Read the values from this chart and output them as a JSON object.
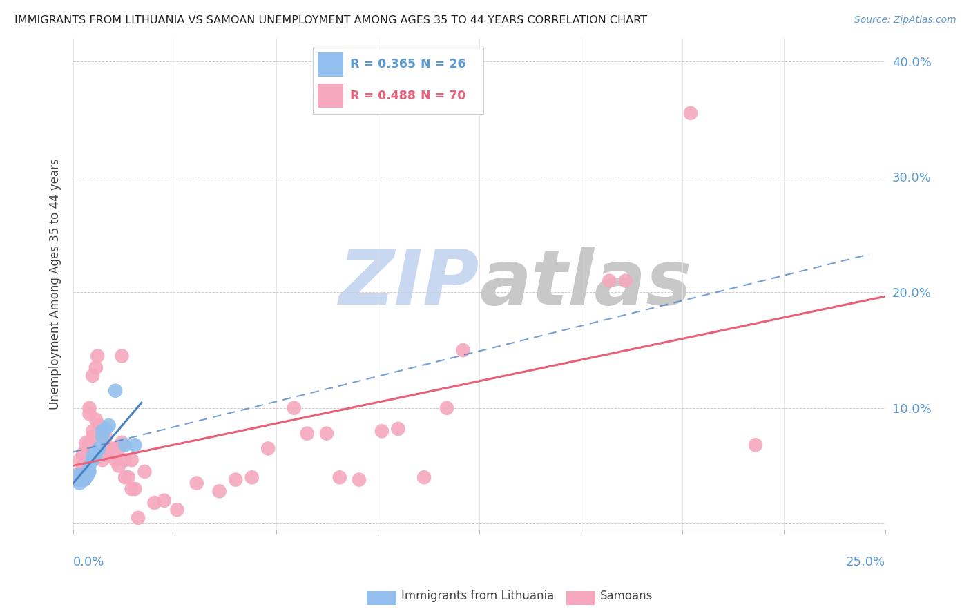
{
  "title": "IMMIGRANTS FROM LITHUANIA VS SAMOAN UNEMPLOYMENT AMONG AGES 35 TO 44 YEARS CORRELATION CHART",
  "source": "Source: ZipAtlas.com",
  "ylabel": "Unemployment Among Ages 35 to 44 years",
  "xlim": [
    0.0,
    0.25
  ],
  "ylim": [
    -0.005,
    0.42
  ],
  "yticks": [
    0.0,
    0.1,
    0.2,
    0.3,
    0.4
  ],
  "ytick_labels": [
    "",
    "10.0%",
    "20.0%",
    "30.0%",
    "40.0%"
  ],
  "legend_r1": "R = 0.365",
  "legend_n1": "N = 26",
  "legend_r2": "R = 0.488",
  "legend_n2": "N = 70",
  "lithuania_color": "#92bfed",
  "samoan_color": "#f5a8be",
  "lithuania_line_color": "#4a80c4",
  "samoan_line_color": "#e8607a",
  "watermark_zip_color": "#c8d8f0",
  "watermark_atlas_color": "#c8c8c8",
  "lithuania_points": [
    [
      0.0005,
      0.038
    ],
    [
      0.001,
      0.04
    ],
    [
      0.0015,
      0.042
    ],
    [
      0.002,
      0.035
    ],
    [
      0.002,
      0.04
    ],
    [
      0.0025,
      0.038
    ],
    [
      0.003,
      0.04
    ],
    [
      0.003,
      0.042
    ],
    [
      0.0035,
      0.038
    ],
    [
      0.004,
      0.04
    ],
    [
      0.004,
      0.043
    ],
    [
      0.0045,
      0.042
    ],
    [
      0.005,
      0.045
    ],
    [
      0.005,
      0.05
    ],
    [
      0.006,
      0.055
    ],
    [
      0.006,
      0.058
    ],
    [
      0.007,
      0.06
    ],
    [
      0.007,
      0.062
    ],
    [
      0.008,
      0.065
    ],
    [
      0.009,
      0.075
    ],
    [
      0.009,
      0.08
    ],
    [
      0.01,
      0.082
    ],
    [
      0.011,
      0.085
    ],
    [
      0.013,
      0.115
    ],
    [
      0.016,
      0.068
    ],
    [
      0.019,
      0.068
    ]
  ],
  "samoan_points": [
    [
      0.0005,
      0.038
    ],
    [
      0.001,
      0.038
    ],
    [
      0.001,
      0.042
    ],
    [
      0.0015,
      0.04
    ],
    [
      0.002,
      0.038
    ],
    [
      0.002,
      0.042
    ],
    [
      0.002,
      0.055
    ],
    [
      0.0025,
      0.045
    ],
    [
      0.003,
      0.04
    ],
    [
      0.003,
      0.048
    ],
    [
      0.003,
      0.06
    ],
    [
      0.0035,
      0.038
    ],
    [
      0.004,
      0.042
    ],
    [
      0.004,
      0.065
    ],
    [
      0.004,
      0.07
    ],
    [
      0.005,
      0.068
    ],
    [
      0.005,
      0.095
    ],
    [
      0.005,
      0.1
    ],
    [
      0.006,
      0.075
    ],
    [
      0.006,
      0.08
    ],
    [
      0.006,
      0.128
    ],
    [
      0.007,
      0.09
    ],
    [
      0.007,
      0.135
    ],
    [
      0.0075,
      0.145
    ],
    [
      0.008,
      0.06
    ],
    [
      0.008,
      0.085
    ],
    [
      0.009,
      0.08
    ],
    [
      0.009,
      0.055
    ],
    [
      0.01,
      0.065
    ],
    [
      0.01,
      0.075
    ],
    [
      0.011,
      0.06
    ],
    [
      0.011,
      0.06
    ],
    [
      0.012,
      0.06
    ],
    [
      0.012,
      0.065
    ],
    [
      0.013,
      0.055
    ],
    [
      0.013,
      0.065
    ],
    [
      0.014,
      0.05
    ],
    [
      0.014,
      0.065
    ],
    [
      0.015,
      0.07
    ],
    [
      0.015,
      0.145
    ],
    [
      0.016,
      0.04
    ],
    [
      0.016,
      0.055
    ],
    [
      0.017,
      0.04
    ],
    [
      0.018,
      0.03
    ],
    [
      0.018,
      0.055
    ],
    [
      0.019,
      0.03
    ],
    [
      0.02,
      0.005
    ],
    [
      0.022,
      0.045
    ],
    [
      0.025,
      0.018
    ],
    [
      0.028,
      0.02
    ],
    [
      0.032,
      0.012
    ],
    [
      0.038,
      0.035
    ],
    [
      0.045,
      0.028
    ],
    [
      0.05,
      0.038
    ],
    [
      0.055,
      0.04
    ],
    [
      0.06,
      0.065
    ],
    [
      0.068,
      0.1
    ],
    [
      0.072,
      0.078
    ],
    [
      0.078,
      0.078
    ],
    [
      0.082,
      0.04
    ],
    [
      0.088,
      0.038
    ],
    [
      0.095,
      0.08
    ],
    [
      0.1,
      0.082
    ],
    [
      0.108,
      0.04
    ],
    [
      0.115,
      0.1
    ],
    [
      0.12,
      0.15
    ],
    [
      0.165,
      0.21
    ],
    [
      0.17,
      0.21
    ],
    [
      0.19,
      0.355
    ],
    [
      0.21,
      0.068
    ]
  ],
  "lith_trend": [
    0.0,
    0.025,
    0.022,
    0.091
  ],
  "sam_trend_solid": [
    0.0,
    0.02,
    0.25,
    0.175
  ],
  "sam_trend_dashed": [
    0.0,
    0.065,
    0.24,
    0.235
  ]
}
